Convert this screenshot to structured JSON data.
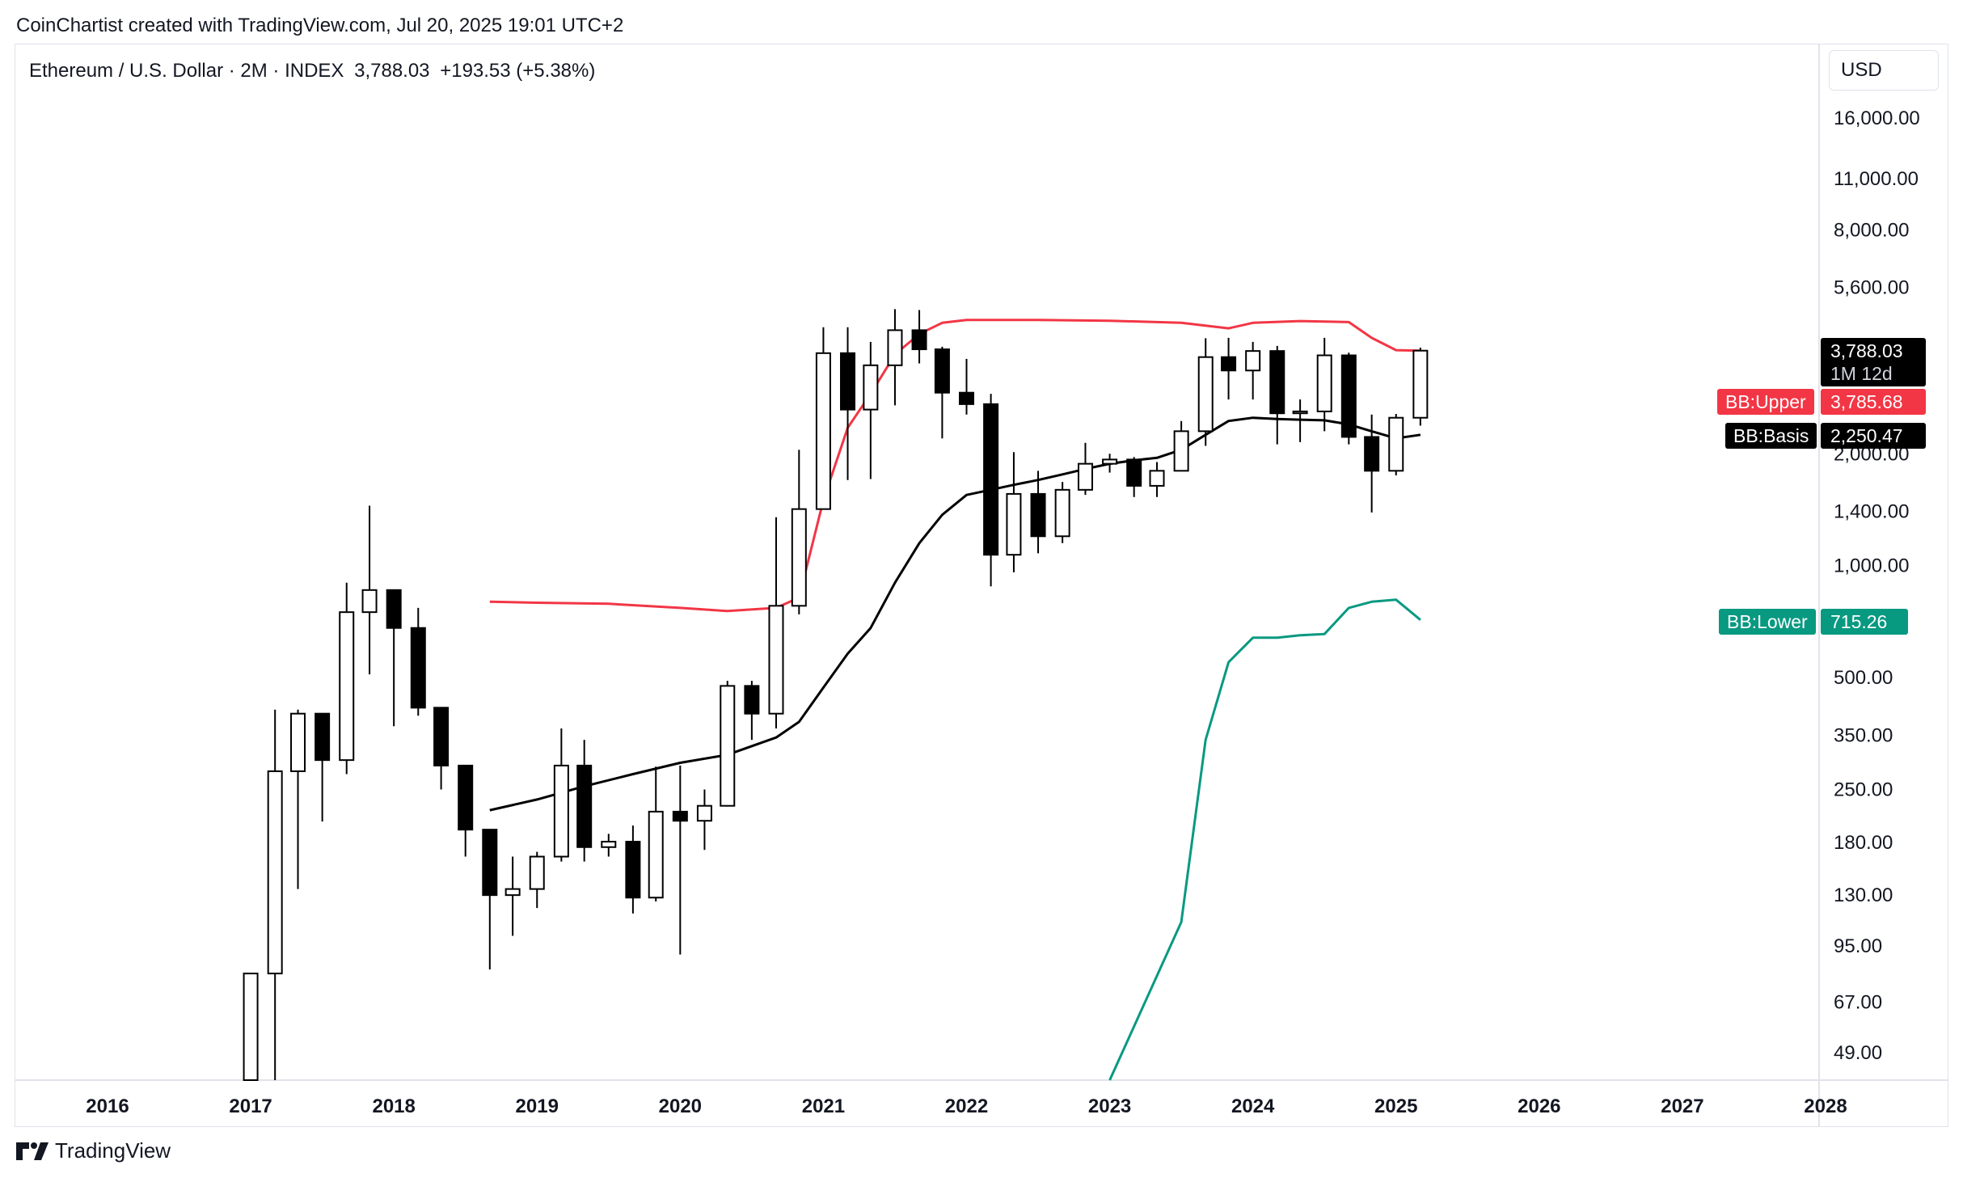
{
  "attribution": "CoinChartist created with TradingView.com, Jul 20, 2025 19:01 UTC+2",
  "header": {
    "symbol": "Ethereum / U.S. Dollar · 2M · INDEX",
    "last": "3,788.03",
    "change": "+193.53 (+5.38%)"
  },
  "currency_button": "USD",
  "price_tag": {
    "price": "3,788.03",
    "countdown": "1M 12d"
  },
  "indicator_badges": [
    {
      "name": "BB:Upper",
      "value": "3,785.68",
      "color": "#f23645"
    },
    {
      "name": "BB:Basis",
      "value": "2,250.47",
      "color": "#000000"
    },
    {
      "name": "BB:Lower",
      "value": "715.26",
      "color": "#089981"
    }
  ],
  "footer": {
    "brand": "TradingView"
  },
  "colors": {
    "up_fill": "#ffffff",
    "down_fill": "#000000",
    "wick": "#000000",
    "upper": "#f23645",
    "basis": "#000000",
    "lower": "#089981"
  },
  "chart_data": {
    "type": "candlestick",
    "scale": "log",
    "y_ticks": [
      49,
      67,
      95,
      130,
      180,
      250,
      350,
      500,
      1000,
      1400,
      2000,
      5600,
      8000,
      11000,
      16000
    ],
    "y_tick_labels": [
      "49.00",
      "67.00",
      "95.00",
      "130.00",
      "180.00",
      "250.00",
      "350.00",
      "500.00",
      "1,000.00",
      "1,400.00",
      "2,000.00",
      "5,600.00",
      "8,000.00",
      "11,000.00",
      "16,000.00"
    ],
    "x_labels": [
      "2016",
      "2017",
      "2018",
      "2019",
      "2020",
      "2021",
      "2022",
      "2023",
      "2024",
      "2025",
      "2026",
      "2027",
      "2028"
    ],
    "x_label_years": [
      2016,
      2017,
      2018,
      2019,
      2020,
      2021,
      2022,
      2023,
      2024,
      2025,
      2026,
      2027,
      2028
    ],
    "candles": [
      {
        "t": 2017.0,
        "o": 8,
        "h": 80,
        "l": 6,
        "c": 80
      },
      {
        "t": 2017.17,
        "o": 80,
        "h": 410,
        "l": 40,
        "c": 280
      },
      {
        "t": 2017.33,
        "o": 280,
        "h": 410,
        "l": 135,
        "c": 400
      },
      {
        "t": 2017.5,
        "o": 400,
        "h": 400,
        "l": 205,
        "c": 300
      },
      {
        "t": 2017.67,
        "o": 300,
        "h": 900,
        "l": 275,
        "c": 750
      },
      {
        "t": 2017.83,
        "o": 750,
        "h": 1450,
        "l": 510,
        "c": 860
      },
      {
        "t": 2018.0,
        "o": 860,
        "h": 860,
        "l": 370,
        "c": 680
      },
      {
        "t": 2018.17,
        "o": 680,
        "h": 770,
        "l": 395,
        "c": 415
      },
      {
        "t": 2018.33,
        "o": 415,
        "h": 415,
        "l": 250,
        "c": 290
      },
      {
        "t": 2018.5,
        "o": 290,
        "h": 290,
        "l": 165,
        "c": 195
      },
      {
        "t": 2018.67,
        "o": 195,
        "h": 195,
        "l": 82,
        "c": 130
      },
      {
        "t": 2018.83,
        "o": 130,
        "h": 165,
        "l": 101,
        "c": 135
      },
      {
        "t": 2019.0,
        "o": 135,
        "h": 170,
        "l": 120,
        "c": 165
      },
      {
        "t": 2019.17,
        "o": 165,
        "h": 365,
        "l": 160,
        "c": 290
      },
      {
        "t": 2019.33,
        "o": 290,
        "h": 340,
        "l": 160,
        "c": 175
      },
      {
        "t": 2019.5,
        "o": 175,
        "h": 190,
        "l": 165,
        "c": 181
      },
      {
        "t": 2019.67,
        "o": 181,
        "h": 200,
        "l": 116,
        "c": 128
      },
      {
        "t": 2019.83,
        "o": 128,
        "h": 288,
        "l": 125,
        "c": 218
      },
      {
        "t": 2020.0,
        "o": 218,
        "h": 290,
        "l": 90,
        "c": 206
      },
      {
        "t": 2020.17,
        "o": 206,
        "h": 250,
        "l": 172,
        "c": 226
      },
      {
        "t": 2020.33,
        "o": 226,
        "h": 490,
        "l": 225,
        "c": 475
      },
      {
        "t": 2020.5,
        "o": 475,
        "h": 490,
        "l": 340,
        "c": 400
      },
      {
        "t": 2020.67,
        "o": 400,
        "h": 1350,
        "l": 365,
        "c": 780
      },
      {
        "t": 2020.83,
        "o": 780,
        "h": 2050,
        "l": 740,
        "c": 1420
      },
      {
        "t": 2021.0,
        "o": 1420,
        "h": 4380,
        "l": 1420,
        "c": 3730
      },
      {
        "t": 2021.17,
        "o": 3730,
        "h": 4380,
        "l": 1700,
        "c": 2630
      },
      {
        "t": 2021.33,
        "o": 2630,
        "h": 4000,
        "l": 1710,
        "c": 3460
      },
      {
        "t": 2021.5,
        "o": 3460,
        "h": 4900,
        "l": 2700,
        "c": 4300
      },
      {
        "t": 2021.67,
        "o": 4300,
        "h": 4870,
        "l": 3500,
        "c": 3820
      },
      {
        "t": 2021.83,
        "o": 3820,
        "h": 3880,
        "l": 2200,
        "c": 2920
      },
      {
        "t": 2022.0,
        "o": 2920,
        "h": 3600,
        "l": 2550,
        "c": 2720
      },
      {
        "t": 2022.17,
        "o": 2720,
        "h": 2900,
        "l": 880,
        "c": 1070
      },
      {
        "t": 2022.33,
        "o": 1070,
        "h": 2020,
        "l": 960,
        "c": 1560
      },
      {
        "t": 2022.5,
        "o": 1560,
        "h": 1800,
        "l": 1080,
        "c": 1200
      },
      {
        "t": 2022.67,
        "o": 1200,
        "h": 1680,
        "l": 1150,
        "c": 1600
      },
      {
        "t": 2022.83,
        "o": 1600,
        "h": 2140,
        "l": 1550,
        "c": 1880
      },
      {
        "t": 2023.0,
        "o": 1880,
        "h": 2000,
        "l": 1780,
        "c": 1930
      },
      {
        "t": 2023.17,
        "o": 1930,
        "h": 1960,
        "l": 1530,
        "c": 1640
      },
      {
        "t": 2023.33,
        "o": 1640,
        "h": 1900,
        "l": 1530,
        "c": 1800
      },
      {
        "t": 2023.5,
        "o": 1800,
        "h": 2450,
        "l": 1800,
        "c": 2300
      },
      {
        "t": 2023.67,
        "o": 2300,
        "h": 4090,
        "l": 2100,
        "c": 3640
      },
      {
        "t": 2023.83,
        "o": 3640,
        "h": 4100,
        "l": 2800,
        "c": 3350
      },
      {
        "t": 2024.0,
        "o": 3350,
        "h": 4000,
        "l": 2800,
        "c": 3780
      },
      {
        "t": 2024.17,
        "o": 3780,
        "h": 3900,
        "l": 2120,
        "c": 2570
      },
      {
        "t": 2024.33,
        "o": 2570,
        "h": 2800,
        "l": 2150,
        "c": 2600
      },
      {
        "t": 2024.5,
        "o": 2600,
        "h": 4100,
        "l": 2300,
        "c": 3680
      },
      {
        "t": 2024.67,
        "o": 3680,
        "h": 3740,
        "l": 2120,
        "c": 2220
      },
      {
        "t": 2024.83,
        "o": 2220,
        "h": 2550,
        "l": 1390,
        "c": 1800
      },
      {
        "t": 2025.0,
        "o": 1800,
        "h": 2560,
        "l": 1750,
        "c": 2500
      },
      {
        "t": 2025.17,
        "o": 2500,
        "h": 3860,
        "l": 2380,
        "c": 3788
      }
    ],
    "bands": {
      "upper": [
        [
          2018.67,
          800
        ],
        [
          2019.0,
          795
        ],
        [
          2019.5,
          790
        ],
        [
          2020.0,
          770
        ],
        [
          2020.33,
          755
        ],
        [
          2020.67,
          770
        ],
        [
          2020.83,
          820
        ],
        [
          2021.0,
          1500
        ],
        [
          2021.17,
          2350
        ],
        [
          2021.33,
          2900
        ],
        [
          2021.5,
          3700
        ],
        [
          2021.67,
          4200
        ],
        [
          2021.83,
          4500
        ],
        [
          2022.0,
          4580
        ],
        [
          2022.5,
          4580
        ],
        [
          2023.0,
          4560
        ],
        [
          2023.5,
          4500
        ],
        [
          2023.83,
          4350
        ],
        [
          2024.0,
          4500
        ],
        [
          2024.33,
          4550
        ],
        [
          2024.67,
          4520
        ],
        [
          2024.83,
          4100
        ],
        [
          2025.0,
          3800
        ],
        [
          2025.17,
          3786
        ]
      ],
      "basis": [
        [
          2018.67,
          220
        ],
        [
          2019.0,
          235
        ],
        [
          2019.33,
          255
        ],
        [
          2019.67,
          275
        ],
        [
          2020.0,
          295
        ],
        [
          2020.33,
          310
        ],
        [
          2020.67,
          345
        ],
        [
          2020.83,
          380
        ],
        [
          2021.0,
          470
        ],
        [
          2021.17,
          580
        ],
        [
          2021.33,
          680
        ],
        [
          2021.5,
          900
        ],
        [
          2021.67,
          1150
        ],
        [
          2021.83,
          1370
        ],
        [
          2022.0,
          1550
        ],
        [
          2022.17,
          1600
        ],
        [
          2022.33,
          1650
        ],
        [
          2022.5,
          1700
        ],
        [
          2022.67,
          1760
        ],
        [
          2022.83,
          1820
        ],
        [
          2023.0,
          1880
        ],
        [
          2023.17,
          1920
        ],
        [
          2023.33,
          1950
        ],
        [
          2023.5,
          2050
        ],
        [
          2023.67,
          2250
        ],
        [
          2023.83,
          2450
        ],
        [
          2024.0,
          2500
        ],
        [
          2024.17,
          2480
        ],
        [
          2024.33,
          2470
        ],
        [
          2024.5,
          2460
        ],
        [
          2024.67,
          2400
        ],
        [
          2024.83,
          2300
        ],
        [
          2025.0,
          2200
        ],
        [
          2025.17,
          2250
        ]
      ],
      "lower": [
        [
          2023.0,
          0.01
        ],
        [
          2023.5,
          110
        ],
        [
          2023.67,
          340
        ],
        [
          2023.83,
          550
        ],
        [
          2024.0,
          640
        ],
        [
          2024.17,
          640
        ],
        [
          2024.33,
          650
        ],
        [
          2024.5,
          655
        ],
        [
          2024.67,
          770
        ],
        [
          2024.83,
          800
        ],
        [
          2025.0,
          810
        ],
        [
          2025.17,
          715
        ]
      ]
    }
  }
}
